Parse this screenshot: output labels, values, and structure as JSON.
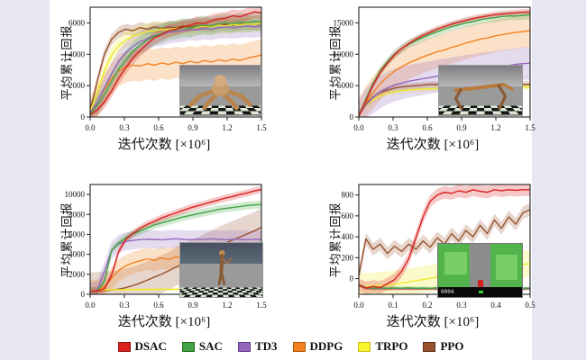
{
  "page": {
    "background": "#e7e7f3",
    "figure_background": "#ffffff"
  },
  "legend": {
    "items": [
      {
        "label": "DSAC",
        "color": "#da1f1f",
        "border": "#8f1212"
      },
      {
        "label": "SAC",
        "color": "#44a344",
        "border": "#1f6b1f"
      },
      {
        "label": "TD3",
        "color": "#9467bd",
        "border": "#5e3d85"
      },
      {
        "label": "DDPG",
        "color": "#f1821f",
        "border": "#b05708"
      },
      {
        "label": "TRPO",
        "color": "#f8f52c",
        "border": "#c9bb1c"
      },
      {
        "label": "PPO",
        "color": "#99522e",
        "border": "#5e2f15"
      }
    ]
  },
  "insets": {
    "ant": {
      "name": "ant-robot-environment"
    },
    "half_cheetah": {
      "name": "half-cheetah-environment"
    },
    "humanoid": {
      "name": "humanoid-environment"
    },
    "driving": {
      "name": "autonomous-driving-environment",
      "hud_text": "0004"
    }
  },
  "chart_data": [
    {
      "type": "line",
      "environment": "ant",
      "ylabel": "平均累计回报",
      "xlabel": "迭代次数 [×10⁶]",
      "xlim": [
        0,
        1.5
      ],
      "ylim": [
        0,
        7000
      ],
      "x_ticks": [
        "0.0",
        "0.3",
        "0.6",
        "0.9",
        "1.2",
        "1.5"
      ],
      "y_ticks": [
        0,
        2000,
        4000,
        6000
      ],
      "grid": false,
      "series": [
        {
          "name": "DSAC",
          "color": "#da1f1f",
          "band": 400,
          "values": [
            150,
            450,
            950,
            1650,
            2450,
            3150,
            3750,
            4250,
            4650,
            5050,
            5250,
            5500,
            5600,
            5750,
            5850,
            6000,
            5950,
            6150,
            6250,
            6300,
            6450,
            6400,
            6550,
            6700,
            6650
          ]
        },
        {
          "name": "SAC",
          "color": "#44a344",
          "band": 600,
          "values": [
            200,
            750,
            1450,
            2250,
            3050,
            3650,
            4200,
            4600,
            4900,
            5150,
            5300,
            5500,
            5550,
            5700,
            5650,
            5800,
            5850,
            5800,
            5950,
            6000,
            5950,
            6050,
            6000,
            6100,
            6050
          ]
        },
        {
          "name": "TD3",
          "color": "#9467bd",
          "band": 700,
          "values": [
            250,
            950,
            1850,
            2750,
            3550,
            4100,
            4500,
            4800,
            5000,
            5200,
            5250,
            5400,
            5450,
            5500,
            5600,
            5550,
            5650,
            5600,
            5700,
            5750,
            5700,
            5750,
            5800,
            5750,
            5800
          ]
        },
        {
          "name": "DDPG",
          "color": "#f1821f",
          "band": 1000,
          "values": [
            300,
            950,
            1750,
            2450,
            2950,
            3200,
            3300,
            3250,
            3400,
            3300,
            3450,
            3350,
            3500,
            3400,
            3550,
            3450,
            3600,
            3500,
            3650,
            3550,
            3700,
            3600,
            3750,
            3850,
            3950
          ]
        },
        {
          "name": "TRPO",
          "color": "#f0ea2a",
          "band": 500,
          "values": [
            350,
            1550,
            2950,
            3950,
            4550,
            4900,
            5150,
            5300,
            5450,
            5500,
            5600,
            5550,
            5650,
            5700,
            5650,
            5750,
            5800,
            5750,
            5850,
            5800,
            5900,
            5850,
            5950,
            5900,
            6000
          ]
        },
        {
          "name": "PPO",
          "color": "#99522e",
          "band": 350,
          "values": [
            400,
            2300,
            4000,
            4950,
            5400,
            5600,
            5500,
            5700,
            5600,
            5750,
            5650,
            5750,
            5700,
            5800,
            5750,
            5850,
            5800,
            5750,
            5850,
            5900,
            5850,
            5900,
            5950,
            5900,
            5950
          ]
        }
      ]
    },
    {
      "type": "line",
      "environment": "half_cheetah",
      "ylabel": "平均累计回报",
      "xlabel": "迭代次数 [×10⁶]",
      "xlim": [
        0,
        1.5
      ],
      "ylim": [
        0,
        17500
      ],
      "x_ticks": [
        "0.0",
        "0.3",
        "0.6",
        "0.9",
        "1.2",
        "1.5"
      ],
      "y_ticks": [
        0,
        5000,
        10000,
        15000
      ],
      "grid": false,
      "series": [
        {
          "name": "DSAC",
          "color": "#da1f1f",
          "band": 500,
          "values": [
            100,
            2600,
            5100,
            7100,
            8600,
            9900,
            10900,
            11700,
            12400,
            13000,
            13500,
            14000,
            14400,
            14800,
            15100,
            15400,
            15700,
            15900,
            16100,
            16300,
            16400,
            16500,
            16600,
            16700,
            16700
          ]
        },
        {
          "name": "SAC",
          "color": "#44a344",
          "band": 700,
          "values": [
            100,
            2800,
            5300,
            7300,
            8800,
            10000,
            10900,
            11600,
            12200,
            12700,
            13200,
            13600,
            14000,
            14400,
            14700,
            15000,
            15200,
            15500,
            15700,
            15800,
            16000,
            16100,
            16100,
            16200,
            16300
          ]
        },
        {
          "name": "TD3",
          "color": "#9467bd",
          "band": 2600,
          "values": [
            200,
            1900,
            3100,
            4000,
            4600,
            5100,
            5400,
            5700,
            5900,
            6100,
            6300,
            6500,
            6700,
            6900,
            7100,
            7300,
            7400,
            7600,
            7800,
            7900,
            8100,
            8200,
            8400,
            8500,
            8600
          ]
        },
        {
          "name": "DDPG",
          "color": "#f1821f",
          "band": 2600,
          "values": [
            300,
            2300,
            3900,
            5300,
            6400,
            7300,
            8000,
            8600,
            9100,
            9600,
            10000,
            10400,
            10700,
            11100,
            11400,
            11800,
            12100,
            12400,
            12600,
            12900,
            13100,
            13300,
            13500,
            13600,
            13800
          ]
        },
        {
          "name": "TRPO",
          "color": "#f0ea2a",
          "band": 400,
          "values": [
            200,
            1800,
            2800,
            3400,
            3800,
            4000,
            4200,
            4300,
            4400,
            4450,
            4500,
            4550,
            4600,
            4600,
            4650,
            4650,
            4700,
            4700,
            4700,
            4700,
            4750,
            4750,
            4750,
            4750,
            4750
          ]
        },
        {
          "name": "PPO",
          "color": "#99522e",
          "band": 500,
          "values": [
            300,
            2100,
            3200,
            3900,
            4300,
            4600,
            4800,
            4900,
            5000,
            5100,
            5200,
            5200,
            5300,
            5300,
            5300,
            5300,
            5300,
            5300,
            5300,
            5250,
            5250,
            5200,
            5200,
            5200,
            5200
          ]
        }
      ]
    },
    {
      "type": "line",
      "environment": "humanoid",
      "ylabel": "平均累计回报",
      "xlabel": "迭代次数 [×10⁶]",
      "xlim": [
        0,
        1.5
      ],
      "ylim": [
        0,
        11000
      ],
      "x_ticks": [
        "0.0",
        "0.3",
        "0.6",
        "0.9",
        "1.2",
        "1.5"
      ],
      "y_ticks": [
        0,
        2000,
        4000,
        6000,
        8000,
        10000
      ],
      "grid": false,
      "series": [
        {
          "name": "DSAC",
          "color": "#da1f1f",
          "band": 350,
          "values": [
            300,
            350,
            550,
            1900,
            4300,
            5500,
            6100,
            6600,
            7000,
            7300,
            7650,
            7900,
            8150,
            8400,
            8650,
            8850,
            9050,
            9250,
            9450,
            9650,
            9800,
            10000,
            10150,
            10350,
            10500
          ]
        },
        {
          "name": "SAC",
          "color": "#44a344",
          "band": 400,
          "values": [
            300,
            360,
            1300,
            4400,
            5150,
            5650,
            6050,
            6350,
            6650,
            6950,
            7150,
            7350,
            7550,
            7750,
            7900,
            8050,
            8200,
            8350,
            8500,
            8600,
            8700,
            8800,
            8900,
            8950,
            9000
          ]
        },
        {
          "name": "TD3",
          "color": "#9467bd",
          "band": 900,
          "values": [
            300,
            420,
            2300,
            4400,
            5050,
            5300,
            5400,
            5480,
            5520,
            5500,
            5460,
            5520,
            5560,
            5500,
            5460,
            5520,
            5500,
            5560,
            5500,
            5460,
            5520,
            5500,
            5460,
            5520,
            5500
          ]
        },
        {
          "name": "DDPG",
          "color": "#f1821f",
          "band": 1100,
          "values": [
            300,
            360,
            750,
            1600,
            2400,
            2850,
            3150,
            3350,
            3550,
            3400,
            3650,
            3500,
            3750,
            3600,
            3850,
            3700,
            3900,
            3800,
            3950,
            3850,
            3950,
            3900,
            4000,
            3950,
            4000
          ]
        },
        {
          "name": "TRPO",
          "color": "#f0ea2a",
          "band": 120,
          "values": [
            350,
            400,
            430,
            450,
            460,
            470,
            480,
            485,
            490,
            495,
            500,
            505,
            505,
            510,
            510,
            515,
            515,
            520,
            520,
            525,
            525,
            530,
            530,
            535,
            540
          ]
        },
        {
          "name": "PPO",
          "color": "#99522e",
          "band": 1900,
          "values": [
            300,
            320,
            360,
            420,
            520,
            670,
            870,
            1120,
            1420,
            1720,
            2020,
            2350,
            2720,
            3050,
            3450,
            3750,
            4150,
            4450,
            4850,
            5150,
            5450,
            5750,
            6050,
            6350,
            6700
          ]
        }
      ]
    },
    {
      "type": "line",
      "environment": "driving",
      "ylabel": "平均累计回报",
      "xlabel": "迭代次数 [×10⁶]",
      "xlim": [
        0,
        0.5
      ],
      "ylim": [
        -150,
        900
      ],
      "x_ticks": [
        "0.0",
        "0.1",
        "0.2",
        "0.3",
        "0.4",
        "0.5"
      ],
      "y_ticks": [
        0,
        200,
        400,
        600,
        800
      ],
      "grid": false,
      "series": [
        {
          "name": "DSAC",
          "color": "#da1f1f",
          "band": 60,
          "values": [
            -60,
            -90,
            -75,
            -85,
            -50,
            -10,
            70,
            190,
            390,
            590,
            740,
            800,
            825,
            815,
            840,
            825,
            850,
            835,
            825,
            850,
            840,
            850,
            845,
            850,
            850
          ]
        },
        {
          "name": "SAC",
          "color": "#44a344",
          "band": 15,
          "values": [
            -60,
            -85,
            -92,
            -88,
            -93,
            -89,
            -91,
            -88,
            -92,
            -90,
            -93,
            -88,
            -91,
            -92,
            -89,
            -90,
            -88,
            -93,
            -90,
            -89,
            -92,
            -90,
            -88,
            -91,
            -90
          ]
        },
        {
          "name": "TD3",
          "color": "#9467bd",
          "band": 6,
          "values": [
            -65,
            -95,
            -97,
            -96,
            -98,
            -97,
            -96,
            -97,
            -98,
            -96,
            -97,
            -98,
            -97,
            -96,
            -97,
            -98,
            -97,
            -96,
            -97,
            -98,
            -97,
            -96,
            -97,
            -98,
            -97
          ]
        },
        {
          "name": "DDPG",
          "color": "#f1821f",
          "band": 6,
          "values": [
            -70,
            -100,
            -102,
            -101,
            -103,
            -102,
            -101,
            -102,
            -103,
            -101,
            -102,
            -103,
            -102,
            -101,
            -102,
            -103,
            -102,
            -101,
            -102,
            -103,
            -102,
            -101,
            -102,
            -103,
            -102
          ]
        },
        {
          "name": "TRPO",
          "color": "#f0ea2a",
          "band": 130,
          "values": [
            -80,
            -76,
            -72,
            -68,
            -62,
            -52,
            -42,
            -32,
            -20,
            -8,
            2,
            14,
            26,
            40,
            52,
            62,
            76,
            86,
            96,
            106,
            116,
            122,
            130,
            136,
            142
          ]
        },
        {
          "name": "PPO",
          "color": "#99522e",
          "band": 60,
          "values": [
            30,
            380,
            280,
            330,
            240,
            310,
            260,
            330,
            280,
            360,
            300,
            390,
            330,
            430,
            360,
            460,
            400,
            510,
            430,
            560,
            480,
            590,
            520,
            630,
            660
          ]
        }
      ]
    }
  ]
}
